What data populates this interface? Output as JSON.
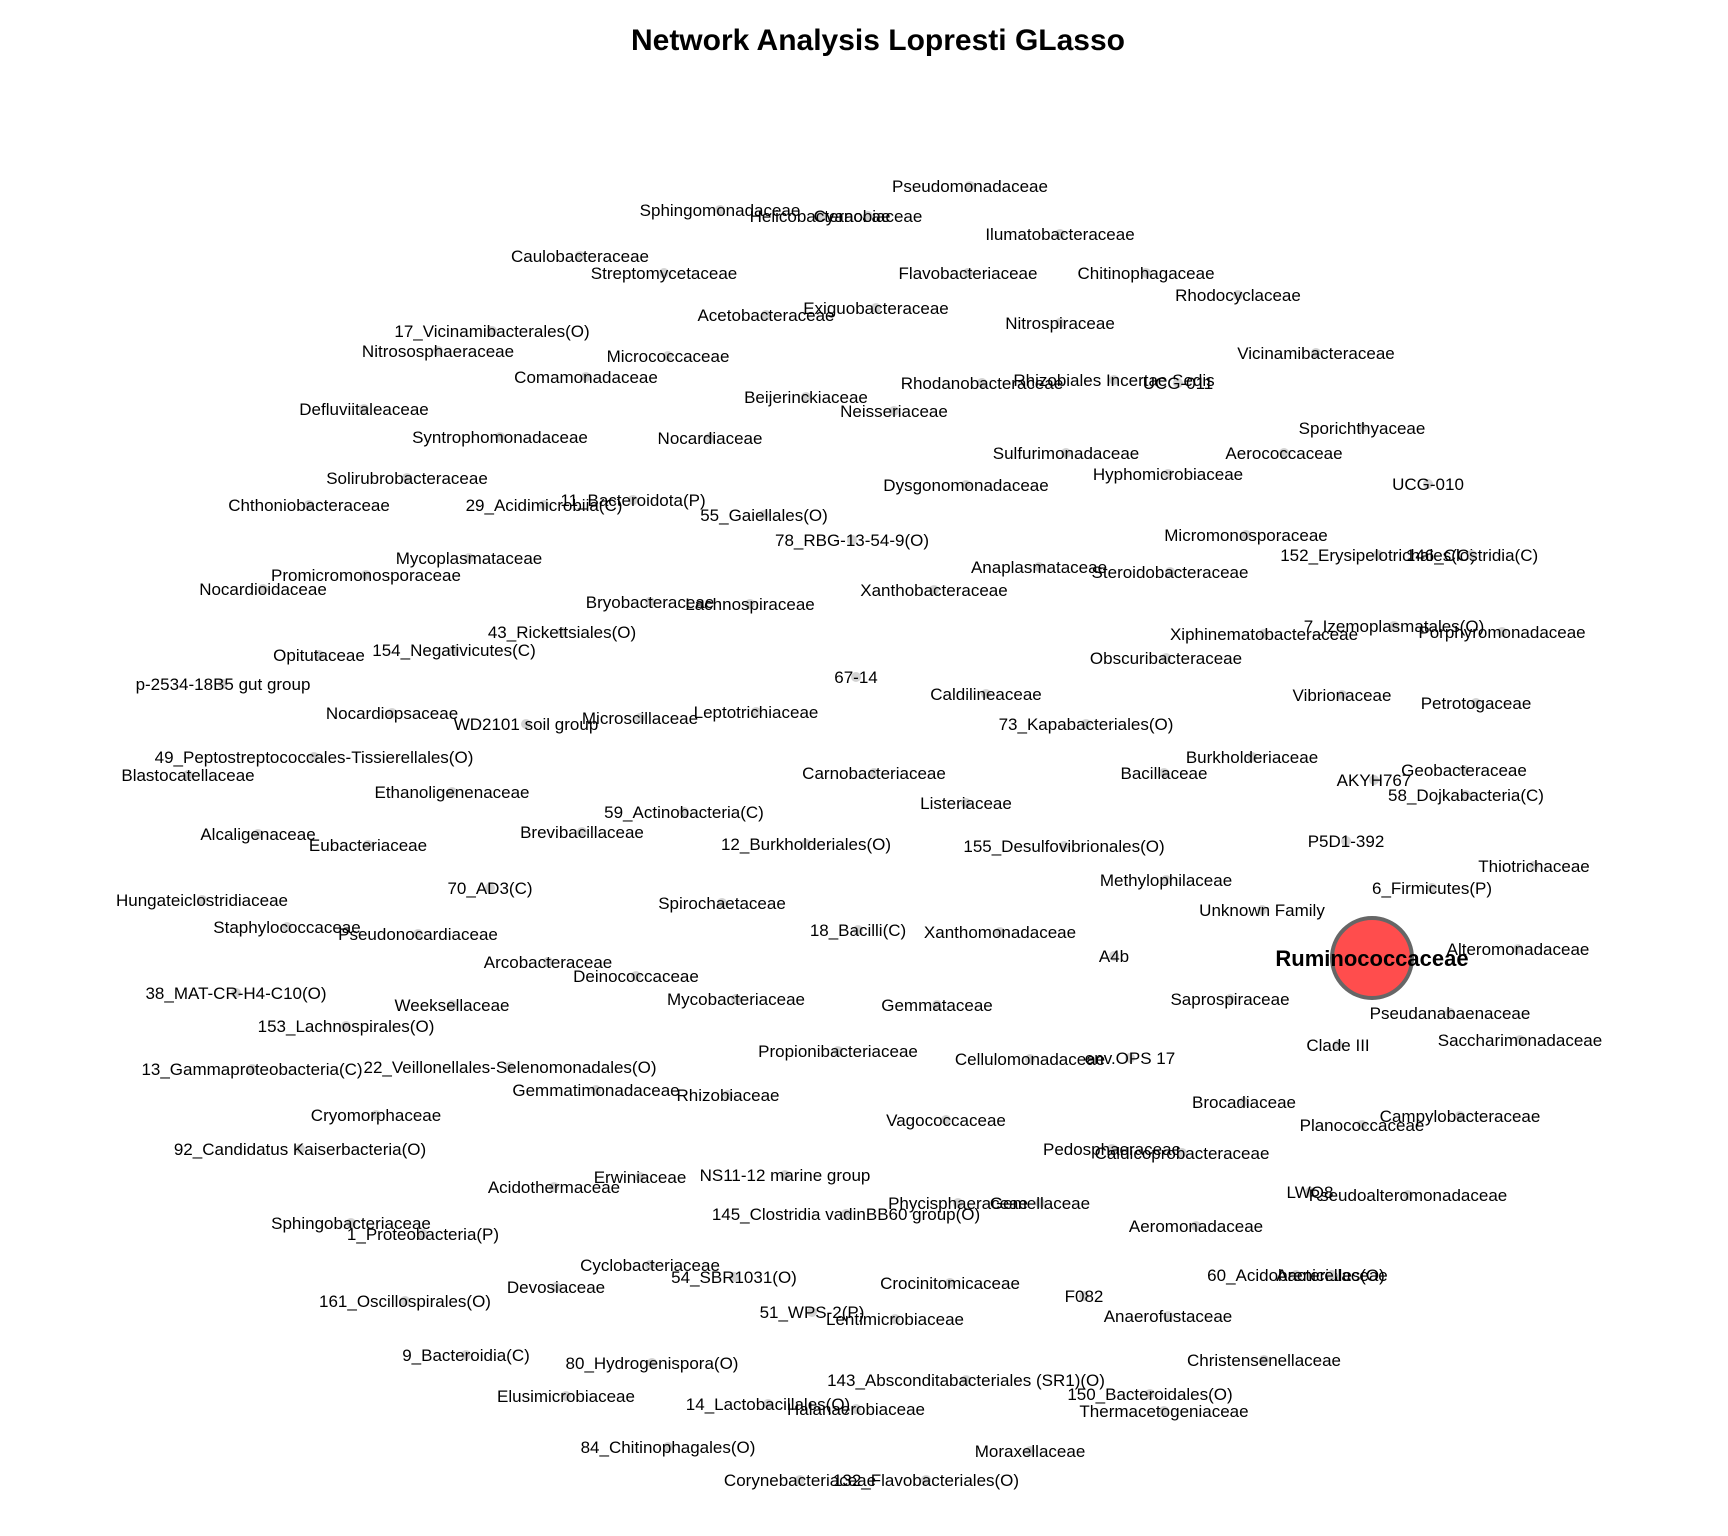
{
  "title": "Network Analysis Lopresti GLasso",
  "colors": {
    "hub_fill": "#ff4d4d",
    "hub_stroke": "#666666",
    "node_fill": "#d3d3d3"
  },
  "hub": {
    "name": "Ruminococcaceae"
  },
  "nodes": [
    "Pseudomonadaceae",
    "Sphingomonadaceae",
    "Helicobacteraceae",
    "Cyanobiaceae",
    "Ilumatobacteraceae",
    "Caulobacteraceae",
    "Streptomycetaceae",
    "Flavobacteriaceae",
    "Chitinophagaceae",
    "Rhodocyclaceae",
    "Acetobacteraceae",
    "Exiguobacteraceae",
    "Nitrospiraceae",
    "17_Vicinamibacterales(O)",
    "Nitrososphaeraceae",
    "Micrococcaceae",
    "Vicinamibacteraceae",
    "Comamonadaceae",
    "Rhizobiales Incertae Sedis",
    "UCG-011",
    "Rhodanobacteraceae",
    "Beijerinckiaceae",
    "Neisseriaceae",
    "Defluviitaleaceae",
    "Sporichthyaceae",
    "Syntrophomonadaceae",
    "Nocardiaceae",
    "Sulfurimonadaceae",
    "Aerococcaceae",
    "Solirubrobacteraceae",
    "Hyphomicrobiaceae",
    "UCG-010",
    "Dysgonomonadaceae",
    "Chthoniobacteraceae",
    "29_Acidimicrobiia(C)",
    "11_Bacteroidota(P)",
    "55_Gaiellales(O)",
    "Micromonosporaceae",
    "78_RBG-13-54-9(O)",
    "152_Erysipelotrichales(O)",
    "146_Clostridia(C)",
    "Mycoplasmataceae",
    "Anaplasmataceae",
    "Steroidobacteraceae",
    "Promicromonosporaceae",
    "Nocardioidaceae",
    "Xanthobacteraceae",
    "Bryobacteraceae",
    "Lachnospiraceae",
    "7_Izemoplasmatales(O)",
    "43_Rickettsiales(O)",
    "Xiphinematobacteraceae",
    "Porphyromonadaceae",
    "154_Negativicutes(C)",
    "Opitutaceae",
    "Obscuribacteraceae",
    "67-14",
    "p-2534-18B5 gut group",
    "Caldilineaceae",
    "Vibrionaceae",
    "Petrotogaceae",
    "Leptotrichiaceae",
    "Nocardiopsaceae",
    "Microscillaceae",
    "WD2101 soil group",
    "73_Kapabacteriales(O)",
    "49_Peptostreptococcales-Tissierellales(O)",
    "Burkholderiaceae",
    "Geobacteraceae",
    "Blastocatellaceae",
    "Carnobacteriaceae",
    "Bacillaceae",
    "AKYH767",
    "Ethanoligenenaceae",
    "58_Dojkabacteria(C)",
    "Listeriaceae",
    "59_Actinobacteria(C)",
    "Brevibacillaceae",
    "Alcaligenaceae",
    "P5D1-392",
    "12_Burkholderiales(O)",
    "155_Desulfovibrionales(O)",
    "Eubacteriaceae",
    "Thiotrichaceae",
    "Methylophilaceae",
    "70_AD3(C)",
    "6_Firmicutes(P)",
    "Hungateiclostridiaceae",
    "Spirochaetaceae",
    "Unknown Family",
    "Staphylococcaceae",
    "18_Bacilli(C)",
    "Pseudonocardiaceae",
    "Xanthomonadaceae",
    "Alteromonadaceae",
    "A4b",
    "Arcobacteraceae",
    "Deinococcaceae",
    "38_MAT-CR-H4-C10(O)",
    "Saprospiraceae",
    "Mycobacteriaceae",
    "Weeksellaceae",
    "Gemmataceae",
    "Pseudanabaenaceae",
    "153_Lachnospirales(O)",
    "Clade III",
    "Saccharimonadaceae",
    "Propionibacteriaceae",
    "Cellulomonadaceae",
    "env.OPS 17",
    "22_Veillonellales-Selenomonadales(O)",
    "13_Gammaproteobacteria(C)",
    "Gemmatimonadaceae",
    "Rhizobiaceae",
    "Brocadiaceae",
    "Cryomorphaceae",
    "Campylobacteraceae",
    "Planococcaceae",
    "Vagococcaceae",
    "Pedosphaeraceae",
    "92_Candidatus Kaiserbacteria(O)",
    "Caldicoprobacteraceae",
    "NS11-12 marine group",
    "Erwiniaceae",
    "Acidothermaceae",
    "LWQ8",
    "Pseudoalteromonadaceae",
    "Phycisphaeraceae",
    "Gemellaceae",
    "145_Clostridia vadinBB60 group(O)",
    "Sphingobacteriaceae",
    "Aeromonadaceae",
    "1_Proteobacteria(P)",
    "Cyclobacteriaceae",
    "60_Acidobacteriales(O)",
    "Arenicellaceae",
    "54_SBR1031(O)",
    "Devosiaceae",
    "Crocinitomicaceae",
    "161_Oscillospirales(O)",
    "F082",
    "51_WPS-2(P)",
    "Lentimicrobiaceae",
    "Anaerofustaceae",
    "Christensenellaceae",
    "9_Bacteroidia(C)",
    "80_Hydrogenispora(O)",
    "143_Absconditabacteriales (SR1)(O)",
    "150_Bacteroidales(O)",
    "Elusimicrobiaceae",
    "14_Lactobacillales(O)",
    "Halanaerobiaceae",
    "Thermacetogeniaceae",
    "84_Chitinophagales(O)",
    "Moraxellaceae",
    "Corynebacteriaceae",
    "132_Flavobacteriales(O)"
  ]
}
